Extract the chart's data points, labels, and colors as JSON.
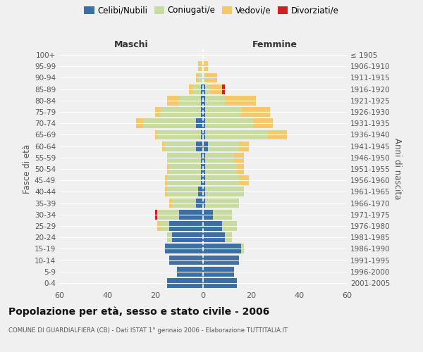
{
  "age_groups": [
    "0-4",
    "5-9",
    "10-14",
    "15-19",
    "20-24",
    "25-29",
    "30-34",
    "35-39",
    "40-44",
    "45-49",
    "50-54",
    "55-59",
    "60-64",
    "65-69",
    "70-74",
    "75-79",
    "80-84",
    "85-89",
    "90-94",
    "95-99",
    "100+"
  ],
  "birth_years": [
    "2001-2005",
    "1996-2000",
    "1991-1995",
    "1986-1990",
    "1981-1985",
    "1976-1980",
    "1971-1975",
    "1966-1970",
    "1961-1965",
    "1956-1960",
    "1951-1955",
    "1946-1950",
    "1941-1945",
    "1936-1940",
    "1931-1935",
    "1926-1930",
    "1921-1925",
    "1916-1920",
    "1911-1915",
    "1906-1910",
    "≤ 1905"
  ],
  "maschi": {
    "celibi": [
      15,
      11,
      14,
      16,
      13,
      14,
      10,
      3,
      2,
      1,
      1,
      1,
      3,
      1,
      3,
      1,
      1,
      1,
      0,
      0,
      0
    ],
    "coniugati": [
      0,
      0,
      0,
      0,
      2,
      4,
      9,
      10,
      13,
      14,
      13,
      14,
      13,
      18,
      22,
      17,
      9,
      3,
      2,
      1,
      0
    ],
    "vedovi": [
      0,
      0,
      0,
      0,
      0,
      1,
      0,
      1,
      1,
      1,
      1,
      0,
      1,
      1,
      3,
      2,
      5,
      2,
      1,
      1,
      0
    ],
    "divorziati": [
      0,
      0,
      0,
      0,
      0,
      0,
      1,
      0,
      0,
      0,
      0,
      0,
      0,
      0,
      0,
      0,
      0,
      0,
      0,
      0,
      0
    ]
  },
  "femmine": {
    "nubili": [
      14,
      13,
      15,
      16,
      9,
      8,
      4,
      1,
      1,
      1,
      1,
      1,
      2,
      1,
      1,
      1,
      1,
      1,
      0,
      0,
      0
    ],
    "coniugate": [
      0,
      0,
      0,
      1,
      3,
      6,
      8,
      14,
      16,
      14,
      13,
      12,
      13,
      26,
      20,
      15,
      8,
      2,
      1,
      0,
      0
    ],
    "vedove": [
      0,
      0,
      0,
      0,
      0,
      0,
      0,
      0,
      0,
      4,
      3,
      4,
      4,
      8,
      8,
      12,
      13,
      5,
      5,
      2,
      0
    ],
    "divorziate": [
      0,
      0,
      0,
      0,
      0,
      0,
      0,
      0,
      0,
      0,
      0,
      0,
      0,
      0,
      0,
      0,
      0,
      1,
      0,
      0,
      0
    ]
  },
  "colors": {
    "celibi_nubili": "#3a6fa8",
    "coniugati": "#c8dba0",
    "vedovi": "#f5c96a",
    "divorziati": "#cc2222"
  },
  "xlim": 60,
  "title": "Popolazione per età, sesso e stato civile - 2006",
  "subtitle": "COMUNE DI GUARDIALFIERA (CB) - Dati ISTAT 1° gennaio 2006 - Elaborazione TUTTITALIA.IT",
  "ylabel_left": "Fasce di età",
  "ylabel_right": "Anni di nascita",
  "legend_labels": [
    "Celibi/Nubili",
    "Coniugati/e",
    "Vedovi/e",
    "Divorziati/e"
  ],
  "background_color": "#f0f0f0"
}
